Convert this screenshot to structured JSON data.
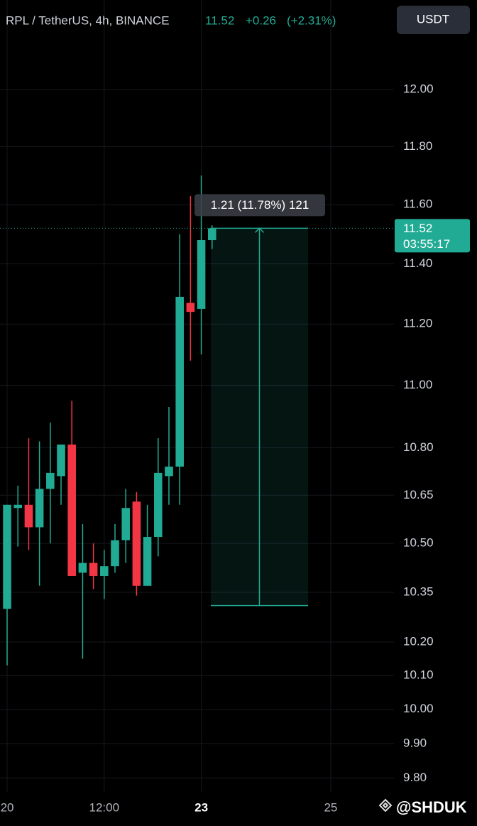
{
  "chart_data": {
    "type": "candlestick",
    "header": {
      "symbol": "RPL / TetherUS, 4h, BINANCE",
      "change": "+0.26",
      "change_pct": "(+2.31%)"
    },
    "currency": "USDT",
    "log_scale": true,
    "grid": true,
    "up_color": "#22ab94",
    "down_color": "#f23645",
    "x": [
      0,
      1,
      2,
      3,
      4,
      5,
      6,
      7,
      8,
      9,
      10,
      11,
      12,
      13,
      14,
      15,
      16,
      17,
      18,
      19
    ],
    "open": [
      10.3,
      10.61,
      10.62,
      10.55,
      10.67,
      10.71,
      10.81,
      10.41,
      10.44,
      10.4,
      10.43,
      10.51,
      10.63,
      10.37,
      10.52,
      10.71,
      10.74,
      11.27,
      11.25,
      11.48
    ],
    "high": [
      10.62,
      10.68,
      10.83,
      10.82,
      10.88,
      10.81,
      10.95,
      10.56,
      10.5,
      10.48,
      10.56,
      10.67,
      10.66,
      10.62,
      10.83,
      10.93,
      11.5,
      11.63,
      11.7,
      11.53
    ],
    "low": [
      10.13,
      10.49,
      10.48,
      10.37,
      10.5,
      10.62,
      10.4,
      10.15,
      10.36,
      10.33,
      10.41,
      10.44,
      10.34,
      10.37,
      10.46,
      10.62,
      10.62,
      11.08,
      11.1,
      11.45
    ],
    "close": [
      10.62,
      10.62,
      10.55,
      10.67,
      10.72,
      10.81,
      10.4,
      10.44,
      10.4,
      10.43,
      10.51,
      10.61,
      10.37,
      10.52,
      10.72,
      10.74,
      11.29,
      11.24,
      11.48,
      11.52
    ],
    "xlim": [
      -0.66,
      35.86
    ],
    "xticks": [
      {
        "value": 0,
        "label": "20"
      },
      {
        "value": 9,
        "label": "12:00"
      },
      {
        "value": 18,
        "label": "23"
      },
      {
        "value": 30,
        "label": "25"
      }
    ],
    "ylim": [
      9.76,
      12.32
    ],
    "yticks": [
      {
        "value": 9.8,
        "label": "9.80"
      },
      {
        "value": 9.9,
        "label": "9.90"
      },
      {
        "value": 10,
        "label": "10.00"
      },
      {
        "value": 10.1,
        "label": "10.10"
      },
      {
        "value": 10.2,
        "label": "10.20"
      },
      {
        "value": 10.35,
        "label": "10.35"
      },
      {
        "value": 10.5,
        "label": "10.50"
      },
      {
        "value": 10.65,
        "label": "10.65"
      },
      {
        "value": 10.8,
        "label": "10.80"
      },
      {
        "value": 11,
        "label": "11.00"
      },
      {
        "value": 11.2,
        "label": "11.20"
      },
      {
        "value": 11.4,
        "label": "11.40"
      },
      {
        "value": 11.6,
        "label": "11.60"
      },
      {
        "value": 11.8,
        "label": "11.80"
      },
      {
        "value": 12,
        "label": "12.00"
      }
    ],
    "price_line": {
      "value": 11.52,
      "label": "11.52",
      "countdown": "03:55:17"
    },
    "measure": {
      "from": 10.31,
      "to": 11.52,
      "label": "1.21 (11.78%) 121"
    },
    "watermark": "@SHDUK"
  }
}
